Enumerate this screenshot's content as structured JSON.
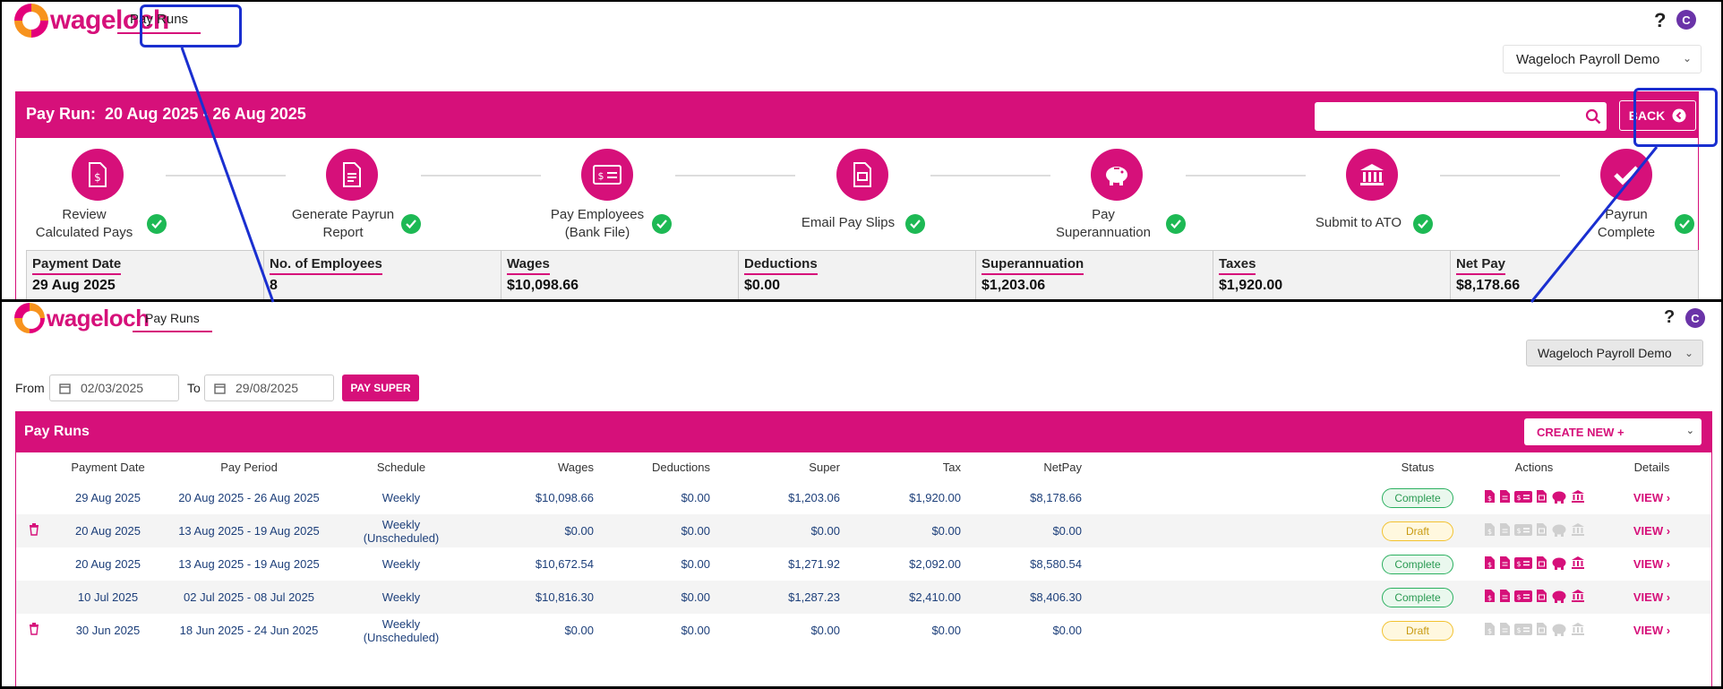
{
  "brand": {
    "logo_text": "wageloch",
    "accent": "#d6107a",
    "success": "#1db954"
  },
  "top": {
    "nav_tab": "Pay Runs",
    "help": "?",
    "avatar": "C",
    "company": "Wageloch Payroll Demo",
    "header_title": "Pay Run:  20 Aug 2025 - 26 Aug 2025",
    "search": {
      "placeholder": "",
      "value": ""
    },
    "back_label": "BACK",
    "steps": [
      {
        "label": "Review\nCalculated Pays",
        "icon": "dollar-document-icon",
        "done": true
      },
      {
        "label": "Generate Payrun\nReport",
        "icon": "report-document-icon",
        "done": true
      },
      {
        "label": "Pay Employees\n(Bank File)",
        "icon": "bank-file-icon",
        "done": true
      },
      {
        "label": "Email Pay Slips",
        "icon": "pay-slip-icon",
        "done": true
      },
      {
        "label": "Pay\nSuperannuation",
        "icon": "piggy-bank-icon",
        "done": true
      },
      {
        "label": "Submit to ATO",
        "icon": "government-building-icon",
        "done": true
      },
      {
        "label": "Payrun\nComplete",
        "icon": "checkmark-icon",
        "done": true
      }
    ],
    "summary": [
      {
        "label": "Payment Date",
        "value": "29 Aug 2025"
      },
      {
        "label": "No. of Employees",
        "value": "8"
      },
      {
        "label": "Wages",
        "value": "$10,098.66"
      },
      {
        "label": "Deductions",
        "value": "$0.00"
      },
      {
        "label": "Superannuation",
        "value": "$1,203.06"
      },
      {
        "label": "Taxes",
        "value": "$1,920.00"
      },
      {
        "label": "Net Pay",
        "value": "$8,178.66"
      }
    ]
  },
  "bottom": {
    "nav_tab": "Pay Runs",
    "help": "?",
    "avatar": "C",
    "company": "Wageloch Payroll Demo",
    "from_label": "From",
    "from_value": "02/03/2025",
    "to_label": "To",
    "to_value": "29/08/2025",
    "pay_super": "PAY SUPER",
    "panel_title": "Pay Runs",
    "create_new": "CREATE NEW +",
    "columns": [
      "Payment Date",
      "Pay Period",
      "Schedule",
      "Wages",
      "Deductions",
      "Super",
      "Tax",
      "NetPay",
      "Status",
      "Actions",
      "Details"
    ],
    "rows": [
      {
        "deletable": false,
        "payment_date": "29 Aug 2025",
        "pay_period": "20 Aug 2025 - 26 Aug 2025",
        "schedule": "Weekly",
        "schedule_note": "",
        "wages": "$10,098.66",
        "deductions": "$0.00",
        "super": "$1,203.06",
        "tax": "$1,920.00",
        "netpay": "$8,178.66",
        "status": "Complete",
        "view": "VIEW"
      },
      {
        "deletable": true,
        "payment_date": "20 Aug 2025",
        "pay_period": "13 Aug 2025 - 19 Aug 2025",
        "schedule": "Weekly",
        "schedule_note": "(Unscheduled)",
        "wages": "$0.00",
        "deductions": "$0.00",
        "super": "$0.00",
        "tax": "$0.00",
        "netpay": "$0.00",
        "status": "Draft",
        "view": "VIEW"
      },
      {
        "deletable": false,
        "payment_date": "20 Aug 2025",
        "pay_period": "13 Aug 2025 - 19 Aug 2025",
        "schedule": "Weekly",
        "schedule_note": "",
        "wages": "$10,672.54",
        "deductions": "$0.00",
        "super": "$1,271.92",
        "tax": "$2,092.00",
        "netpay": "$8,580.54",
        "status": "Complete",
        "view": "VIEW"
      },
      {
        "deletable": false,
        "payment_date": "10 Jul 2025",
        "pay_period": "02 Jul 2025 - 08 Jul 2025",
        "schedule": "Weekly",
        "schedule_note": "",
        "wages": "$10,816.30",
        "deductions": "$0.00",
        "super": "$1,287.23",
        "tax": "$2,410.00",
        "netpay": "$8,406.30",
        "status": "Complete",
        "view": "VIEW"
      },
      {
        "deletable": true,
        "payment_date": "30 Jun 2025",
        "pay_period": "18 Jun 2025 - 24 Jun 2025",
        "schedule": "Weekly",
        "schedule_note": "(Unscheduled)",
        "wages": "$0.00",
        "deductions": "$0.00",
        "super": "$0.00",
        "tax": "$0.00",
        "netpay": "$0.00",
        "status": "Draft",
        "view": "VIEW"
      }
    ]
  }
}
